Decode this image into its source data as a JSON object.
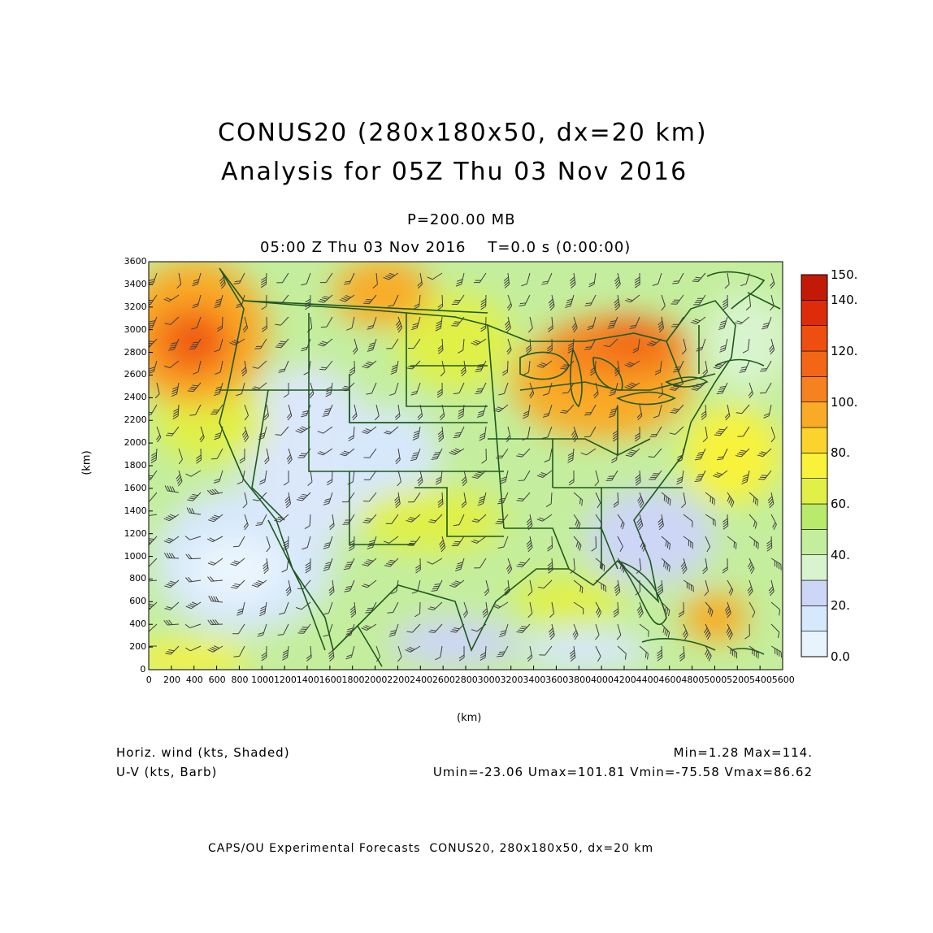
{
  "header": {
    "title_line1": "CONUS20 (280x180x50, dx=20 km)",
    "title_line2": "Analysis for 05Z Thu 03 Nov 2016",
    "level": "P=200.00 MB",
    "time": "05:00 Z Thu 03 Nov 2016    T=0.0 s (0:00:00)"
  },
  "axes": {
    "x_unit": "(km)",
    "y_unit": "(km)",
    "x_ticks": [
      "0",
      "200",
      "400",
      "600",
      "800",
      "1000",
      "1200",
      "1400",
      "1600",
      "1800",
      "2000",
      "2200",
      "2400",
      "2600",
      "2800",
      "3000",
      "3200",
      "3400",
      "3600",
      "3800",
      "4000",
      "4200",
      "4400",
      "4600",
      "4800",
      "5000",
      "5200",
      "5400",
      "5600"
    ],
    "y_ticks": [
      "0",
      "200",
      "400",
      "600",
      "800",
      "1000",
      "1200",
      "1400",
      "1600",
      "1800",
      "2000",
      "2200",
      "2400",
      "2600",
      "2800",
      "3000",
      "3200",
      "3400",
      "3600"
    ],
    "x_range_km": [
      0,
      5600
    ],
    "y_range_km": [
      0,
      3600
    ]
  },
  "colorbar": {
    "labels": [
      "150.",
      "140.",
      "120.",
      "100.",
      "80.",
      "60.",
      "40.",
      "20.",
      "0.0"
    ],
    "levels": [
      0,
      10,
      20,
      30,
      40,
      50,
      60,
      70,
      80,
      90,
      100,
      110,
      120,
      130,
      140,
      150
    ],
    "colors": [
      "#e8f4fc",
      "#d6e8fb",
      "#cdd6f6",
      "#d8f4cf",
      "#c4ee9d",
      "#b8ea6c",
      "#e0f046",
      "#f8f23a",
      "#fad32c",
      "#f9ab28",
      "#f6811f",
      "#f26615",
      "#ee4e10",
      "#de2b0a",
      "#c21a06",
      "#a20e02"
    ]
  },
  "legend": {
    "shaded_label": "Horiz. wind (kts, Shaded)",
    "barb_label": "U-V (kts, Barb)",
    "min_max": "Min=1.28 Max=114.",
    "uv_stats": "Umin=-23.06 Umax=101.81 Vmin=-75.58 Vmax=86.62"
  },
  "footer": {
    "credit": "CAPS/OU Experimental Forecasts  CONUS20, 280x180x50, dx=20 km"
  },
  "map_colors": {
    "border": "#1e5a1e",
    "barb": "#404040"
  }
}
